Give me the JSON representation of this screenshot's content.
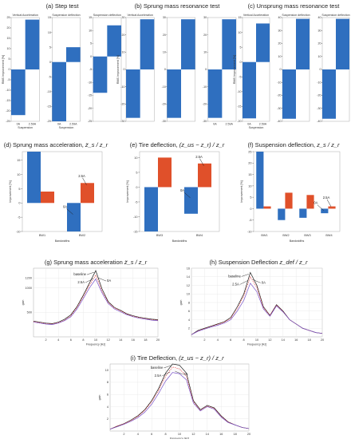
{
  "figure_a": {
    "title": "(a) Step test",
    "subplots": [
      {
        "title": "Vertical Acceleration",
        "ylabel": "RMS Improvement [%]",
        "xlabel": "Suspension",
        "categories": [
          "0A",
          "2.59A"
        ],
        "ylim": [
          -25,
          25
        ],
        "ticks": [
          "-25",
          "-20",
          "-15",
          "-10",
          "-5",
          "0",
          "5",
          "10",
          "15",
          "20",
          "25"
        ],
        "values": [
          -22,
          24
        ]
      },
      {
        "title": "Suspension deflection",
        "ylabel": "",
        "xlabel": "Suspension",
        "categories": [
          "0A",
          "2.59A"
        ],
        "ylim": [
          -20,
          15
        ],
        "ticks": [
          "-20",
          "-15",
          "-10",
          "-5",
          "0",
          "5",
          "10",
          "15"
        ],
        "values": [
          -20,
          5
        ]
      },
      {
        "title": "Suspension deflection",
        "ylabel": "",
        "xlabel": "",
        "categories": [
          "",
          ""
        ],
        "ylim": [
          -25,
          15
        ],
        "ticks": [
          "-25",
          "-20",
          "-15",
          "-10",
          "-5",
          "0",
          "5",
          "10",
          "15"
        ],
        "values": [
          -14,
          12
        ]
      }
    ]
  },
  "figure_b": {
    "title": "(b) Sprung mass resonance test",
    "subplots": [
      {
        "title": "Vertical Acceleration",
        "ylabel": "RMS Improvement [%]",
        "xlabel": "",
        "categories": [
          "",
          ""
        ],
        "ylim": [
          -30,
          30
        ],
        "ticks": [
          "-30",
          "-20",
          "-10",
          "0",
          "10",
          "20",
          "30"
        ],
        "values": [
          -28,
          29
        ]
      },
      {
        "title": "",
        "ylabel": "",
        "xlabel": "",
        "categories": [
          "",
          ""
        ],
        "ylim": [
          -30,
          30
        ],
        "ticks": [
          "-30",
          "-20",
          "-10",
          "0",
          "10",
          "20",
          "30"
        ],
        "values": [
          -28,
          29
        ]
      },
      {
        "title": "",
        "ylabel": "",
        "xlabel": "",
        "categories": [
          "0A",
          "2.59A"
        ],
        "ylim": [
          -30,
          30
        ],
        "ticks": [
          "-30",
          "-20",
          "-10",
          "0",
          "10",
          "20",
          "30"
        ],
        "values": [
          -28,
          29
        ]
      }
    ]
  },
  "figure_c": {
    "title": "(c) Unsprung mass resonance test",
    "subplots": [
      {
        "title": "Vertical Acceleration",
        "ylabel": "RMS Improvement [%]",
        "xlabel": "Suspension",
        "categories": [
          "0A",
          "2.59A"
        ],
        "ylim": [
          -20,
          15
        ],
        "ticks": [
          "-20",
          "-15",
          "-10",
          "-5",
          "0",
          "5",
          "10",
          "15"
        ],
        "values": [
          -19,
          13
        ]
      },
      {
        "title": "Suspension deflection",
        "ylabel": "",
        "xlabel": "",
        "categories": [
          "",
          ""
        ],
        "ylim": [
          -40,
          40
        ],
        "ticks": [
          "-40",
          "-30",
          "-20",
          "-10",
          "0",
          "10",
          "20",
          "30",
          "40"
        ],
        "values": [
          -38,
          39
        ]
      },
      {
        "title": "Suspension deflection",
        "ylabel": "",
        "xlabel": "",
        "categories": [
          "",
          ""
        ],
        "ylim": [
          -40,
          40
        ],
        "ticks": [
          "-40",
          "-30",
          "-20",
          "-10",
          "0",
          "10",
          "20",
          "30",
          "40"
        ],
        "values": [
          -38,
          39
        ]
      }
    ]
  },
  "figure_d": {
    "title": "(d) Sprung mass acceleration,",
    "title_math": "z̈_s / z_r",
    "ylabel": "Improvement [%]",
    "xlabel": "Bandwidths",
    "categories": [
      "BW1",
      "BW2"
    ],
    "ylim": [
      -10,
      18
    ],
    "ticks": [
      "-10",
      "-5",
      "0",
      "5",
      "10",
      "15"
    ],
    "series": [
      {
        "name": "0A",
        "color": "#2f6fbf",
        "values": [
          18,
          -10
        ]
      },
      {
        "name": "2.5A",
        "color": "#e0502a",
        "values": [
          4,
          7
        ]
      }
    ],
    "annotations": [
      "0A",
      "2.5A"
    ]
  },
  "figure_e": {
    "title": "(e) Tire deflection,",
    "title_math": "(z_us − z_r) / z_r",
    "ylabel": "Improvement [%]",
    "xlabel": "Bandwidths",
    "categories": [
      "BW3",
      "BW4"
    ],
    "ylim": [
      -15,
      12
    ],
    "ticks": [
      "-15",
      "-10",
      "-5",
      "0",
      "5",
      "10"
    ],
    "series": [
      {
        "name": "0A",
        "color": "#2f6fbf",
        "values": [
          -15,
          -9
        ]
      },
      {
        "name": "2.5A",
        "color": "#e0502a",
        "values": [
          10,
          8
        ]
      }
    ],
    "annotations": [
      "0A",
      "2.5A"
    ]
  },
  "figure_f": {
    "title": "(f) Suspension deflection,",
    "title_math": "z_s / z_r",
    "ylabel": "Improvement [%]",
    "xlabel": "Bandwidths",
    "categories": [
      "BW1",
      "BW2",
      "BW3",
      "BW4"
    ],
    "ylim": [
      -10,
      25
    ],
    "ticks": [
      "-10",
      "-5",
      "0",
      "5",
      "10",
      "15",
      "20",
      "25"
    ],
    "series": [
      {
        "name": "0A",
        "color": "#2f6fbf",
        "values": [
          25,
          -5,
          -4,
          -2
        ]
      },
      {
        "name": "2.5A",
        "color": "#e0502a",
        "values": [
          1,
          7,
          6,
          1
        ]
      }
    ],
    "annotations": [
      "0A",
      "2.5A"
    ]
  },
  "figure_g": {
    "title": "(g) Sprung mass acceleration",
    "title_math": "z̈_s / z_r",
    "xlabel": "Frequency [Hz]",
    "ylabel": "gain",
    "xlim": [
      0,
      20
    ],
    "ylim": [
      0,
      1400
    ],
    "xticks": [
      "2",
      "4",
      "6",
      "8",
      "10",
      "12",
      "14",
      "16",
      "18",
      "20"
    ],
    "yticks": [
      "500",
      "1000",
      "1200"
    ],
    "ytick_values": [
      500,
      1000,
      1200
    ],
    "series": [
      {
        "name": "baseline",
        "color": "#1a1a1a",
        "dash": "",
        "x": [
          0,
          1,
          2,
          3,
          4,
          5,
          6,
          7,
          8,
          9,
          10,
          11,
          12,
          13,
          14,
          15,
          16,
          17,
          18,
          19,
          20
        ],
        "y": [
          320,
          300,
          280,
          270,
          300,
          360,
          450,
          620,
          850,
          1100,
          1350,
          980,
          720,
          600,
          540,
          470,
          430,
          400,
          380,
          360,
          350
        ]
      },
      {
        "name": "2.5A",
        "color": "#e03030",
        "dash": "1.2,1.2",
        "x": [
          0,
          1,
          2,
          3,
          4,
          5,
          6,
          7,
          8,
          9,
          10,
          11,
          12,
          13,
          14,
          15,
          16,
          17,
          18,
          19,
          20
        ],
        "y": [
          310,
          290,
          270,
          260,
          290,
          340,
          430,
          600,
          820,
          1060,
          1260,
          940,
          700,
          590,
          530,
          460,
          420,
          390,
          370,
          350,
          340
        ]
      },
      {
        "name": "0A",
        "color": "#7a55c9",
        "dash": "",
        "x": [
          0,
          1,
          2,
          3,
          4,
          5,
          6,
          7,
          8,
          9,
          10,
          11,
          12,
          13,
          14,
          15,
          16,
          17,
          18,
          19,
          20
        ],
        "y": [
          300,
          280,
          260,
          250,
          280,
          330,
          410,
          570,
          780,
          1000,
          1180,
          900,
          680,
          570,
          510,
          450,
          410,
          380,
          360,
          340,
          330
        ]
      }
    ],
    "annotations": [
      "baseline",
      "2.5A",
      "0A"
    ]
  },
  "figure_h": {
    "title": "(h) Suspension Deflection",
    "title_math": "z_def / z_r",
    "xlabel": "Frequency [Hz]",
    "ylabel": "gain",
    "xlim": [
      0,
      20
    ],
    "ylim": [
      0,
      16
    ],
    "xticks": [
      "2",
      "4",
      "6",
      "8",
      "10",
      "12",
      "14",
      "16",
      "18",
      "20"
    ],
    "yticks": [
      "2",
      "4",
      "6",
      "8",
      "10",
      "12",
      "14",
      "16"
    ],
    "ytick_values": [
      2,
      4,
      6,
      8,
      10,
      12,
      14,
      16
    ],
    "series": [
      {
        "name": "baseline",
        "color": "#1a1a1a",
        "dash": "",
        "x": [
          0,
          1,
          2,
          3,
          4,
          5,
          6,
          7,
          8,
          9,
          10,
          11,
          12,
          13,
          14,
          15,
          16,
          17,
          18,
          19,
          20
        ],
        "y": [
          0.5,
          1.5,
          2,
          2.5,
          3,
          3.5,
          4.5,
          7,
          10,
          15,
          12,
          7,
          5,
          7.5,
          6,
          4,
          3,
          2,
          1.5,
          1,
          0.8
        ]
      },
      {
        "name": "2.5A",
        "color": "#e03030",
        "dash": "1.2,1.2",
        "x": [
          0,
          1,
          2,
          3,
          4,
          5,
          6,
          7,
          8,
          9,
          10,
          11,
          12,
          13,
          14,
          15,
          16,
          17,
          18,
          19,
          20
        ],
        "y": [
          0.5,
          1.4,
          1.9,
          2.4,
          2.9,
          3.4,
          4.3,
          6.6,
          9.5,
          14,
          11.5,
          6.8,
          5,
          7.4,
          5.9,
          4,
          3,
          2,
          1.5,
          1,
          0.8
        ]
      },
      {
        "name": "0A",
        "color": "#7a55c9",
        "dash": "",
        "x": [
          0,
          1,
          2,
          3,
          4,
          5,
          6,
          7,
          8,
          9,
          10,
          11,
          12,
          13,
          14,
          15,
          16,
          17,
          18,
          19,
          20
        ],
        "y": [
          0.5,
          1.3,
          1.8,
          2.3,
          2.7,
          3.2,
          4,
          6,
          8.5,
          12.5,
          10.5,
          6.5,
          4.8,
          7.2,
          5.8,
          4,
          3,
          2,
          1.5,
          1,
          0.8
        ]
      }
    ],
    "annotations": [
      "baseline",
      "2.5A",
      "0A"
    ]
  },
  "figure_i": {
    "title": "(i) Tire Deflection,",
    "title_math": "(z_us − z_r) / z_r",
    "xlabel": "Frequency [Hz]",
    "ylabel": "gain",
    "xlim": [
      0,
      20
    ],
    "ylim": [
      0,
      11
    ],
    "xticks": [
      "2",
      "4",
      "6",
      "8",
      "10",
      "12",
      "14",
      "16",
      "18",
      "20"
    ],
    "yticks": [
      "2",
      "4",
      "6",
      "8",
      "10"
    ],
    "ytick_values": [
      2,
      4,
      6,
      8,
      10
    ],
    "series": [
      {
        "name": "baseline",
        "color": "#1a1a1a",
        "dash": "",
        "x": [
          0,
          1,
          2,
          3,
          4,
          5,
          6,
          7,
          8,
          9,
          10,
          11,
          12,
          13,
          14,
          15,
          16,
          17,
          18,
          19,
          20
        ],
        "y": [
          0.3,
          0.8,
          1.2,
          1.8,
          2.5,
          3.5,
          5,
          7,
          9.5,
          11,
          10.8,
          9.5,
          5,
          3.5,
          4.2,
          3.8,
          2.5,
          1.5,
          1,
          0.6,
          0.4
        ]
      },
      {
        "name": "2.5A",
        "color": "#e03030",
        "dash": "1.2,1.2",
        "x": [
          0,
          1,
          2,
          3,
          4,
          5,
          6,
          7,
          8,
          9,
          10,
          11,
          12,
          13,
          14,
          15,
          16,
          17,
          18,
          19,
          20
        ],
        "y": [
          0.3,
          0.8,
          1.2,
          1.7,
          2.4,
          3.4,
          4.8,
          6.7,
          9,
          10.5,
          10.2,
          9,
          4.8,
          3.4,
          4.1,
          3.7,
          2.4,
          1.5,
          1,
          0.6,
          0.4
        ]
      },
      {
        "name": "0A",
        "color": "#7a55c9",
        "dash": "",
        "x": [
          0,
          1,
          2,
          3,
          4,
          5,
          6,
          7,
          8,
          9,
          10,
          11,
          12,
          13,
          14,
          15,
          16,
          17,
          18,
          19,
          20
        ],
        "y": [
          0.3,
          0.7,
          1.1,
          1.6,
          2.2,
          3.1,
          4.4,
          6.2,
          8.2,
          9.6,
          9.4,
          8.4,
          4.6,
          3.3,
          4,
          3.6,
          2.3,
          1.4,
          1,
          0.6,
          0.4
        ]
      }
    ],
    "annotations": [
      "baseline",
      "2.5A",
      "0A"
    ]
  },
  "colors": {
    "bar_blue": "#2f6fbf",
    "bar_orange": "#e0502a",
    "baseline": "#1a1a1a",
    "red_dotted": "#e03030",
    "violet": "#7a55c9"
  }
}
